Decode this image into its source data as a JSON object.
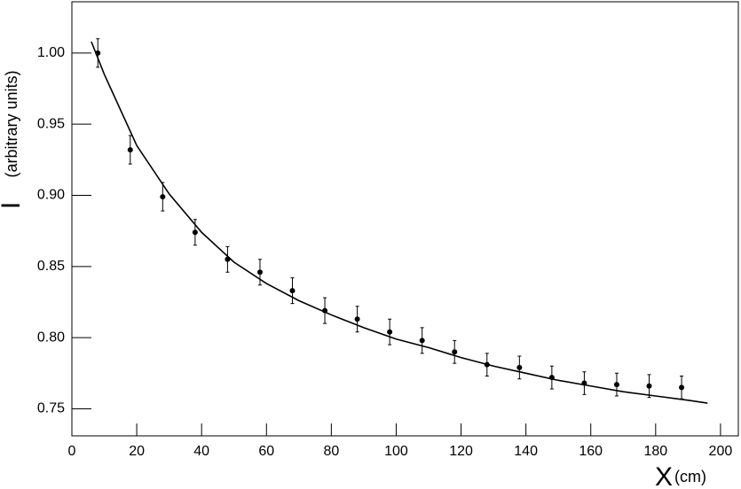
{
  "chart_data": {
    "type": "scatter",
    "xlabel": "X",
    "xlabel_unit": "(cm)",
    "ylabel": "I",
    "ylabel_unit": "(arbitrary units)",
    "xlim": [
      0,
      205.5
    ],
    "ylim": [
      0.731,
      1.036
    ],
    "xticks": [
      0,
      20,
      40,
      60,
      80,
      100,
      120,
      140,
      160,
      180,
      200
    ],
    "yticks": [
      0.75,
      {
        "value": 0.8,
        "label": "0.80"
      },
      0.85,
      {
        "value": 0.9,
        "label": "0.90"
      },
      0.95,
      {
        "value": 1.0,
        "label": "1.00"
      }
    ],
    "series": [
      {
        "color": "#000000",
        "x": [
          8,
          18,
          28,
          38,
          48,
          58,
          68,
          78,
          88,
          98,
          108,
          118,
          128,
          138,
          148,
          158,
          168,
          178,
          188
        ],
        "values": [
          1.0,
          0.932,
          0.899,
          0.874,
          0.855,
          0.846,
          0.833,
          0.819,
          0.813,
          0.804,
          0.798,
          0.79,
          0.781,
          0.779,
          0.772,
          0.768,
          0.767,
          0.766,
          0.765
        ],
        "errors": [
          0.01,
          0.01,
          0.01,
          0.009,
          0.009,
          0.009,
          0.009,
          0.009,
          0.009,
          0.009,
          0.009,
          0.008,
          0.008,
          0.008,
          0.008,
          0.008,
          0.008,
          0.008,
          0.008
        ]
      },
      {
        "color": "#000000",
        "x": [
          6,
          10,
          20,
          30,
          40,
          50,
          60,
          70,
          80,
          90,
          100,
          110,
          120,
          130,
          140,
          150,
          160,
          170,
          180,
          190,
          196
        ],
        "values": [
          1.008,
          0.985,
          0.935,
          0.901,
          0.874,
          0.853,
          0.838,
          0.826,
          0.816,
          0.807,
          0.799,
          0.793,
          0.786,
          0.78,
          0.775,
          0.77,
          0.766,
          0.762,
          0.759,
          0.756,
          0.754
        ]
      }
    ]
  }
}
